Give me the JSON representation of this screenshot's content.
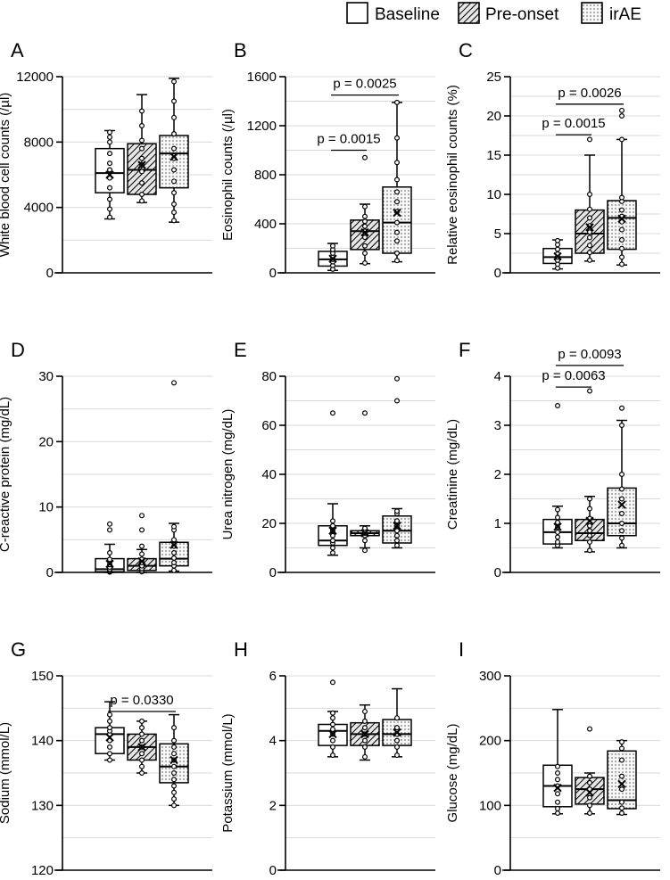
{
  "legend": {
    "position": "top-right",
    "items": [
      {
        "label": "Baseline",
        "pattern": "none"
      },
      {
        "label": "Pre-onset",
        "pattern": "hatch"
      },
      {
        "label": "irAE",
        "pattern": "dots"
      }
    ]
  },
  "colors": {
    "ink": "#000000",
    "grid": "#d9d9d9",
    "hatch_bg": "#e6e6e6",
    "dot_bg": "#f2f2f2"
  },
  "chart_data": [
    {
      "type": "box",
      "panel": "A",
      "ylabel": "White blood cell counts (/µl)",
      "ylim": [
        0,
        12000
      ],
      "ticks": [
        0,
        4000,
        8000,
        12000
      ],
      "gridlines": [
        2000,
        6000,
        10000
      ],
      "series": [
        {
          "group": "Baseline",
          "min": 3300,
          "q1": 4900,
          "median": 6100,
          "q3": 7600,
          "max": 8700,
          "mean": 6000,
          "points": [
            3400,
            3900,
            4500,
            5200,
            5800,
            6300,
            6700,
            7300,
            8000,
            8300,
            8600
          ]
        },
        {
          "group": "Pre-onset",
          "min": 4300,
          "q1": 4800,
          "median": 6300,
          "q3": 7900,
          "max": 10900,
          "mean": 6600,
          "points": [
            4400,
            4800,
            5500,
            6200,
            6600,
            7000,
            7600,
            8100,
            9000,
            9900
          ]
        },
        {
          "group": "irAE",
          "min": 3100,
          "q1": 5200,
          "median": 7300,
          "q3": 8400,
          "max": 11900,
          "mean": 7100,
          "points": [
            3200,
            3700,
            4200,
            4900,
            5600,
            6300,
            7000,
            7600,
            8500,
            9500,
            10500,
            11700
          ]
        }
      ],
      "pvalues": []
    },
    {
      "type": "box",
      "panel": "B",
      "ylabel": "Eosinophil counts (/µl)",
      "ylim": [
        0,
        1600
      ],
      "ticks": [
        0,
        400,
        800,
        1200,
        1600
      ],
      "gridlines": [
        200,
        600,
        1000,
        1400
      ],
      "series": [
        {
          "group": "Baseline",
          "min": 20,
          "q1": 55,
          "median": 110,
          "q3": 175,
          "max": 240,
          "mean": 115,
          "points": [
            30,
            60,
            90,
            110,
            130,
            160,
            190,
            220
          ]
        },
        {
          "group": "Pre-onset",
          "min": 75,
          "q1": 190,
          "median": 340,
          "q3": 430,
          "max": 560,
          "mean": 330,
          "points": [
            80,
            160,
            220,
            290,
            340,
            380,
            420,
            460,
            540,
            940
          ]
        },
        {
          "group": "irAE",
          "min": 90,
          "q1": 160,
          "median": 410,
          "q3": 700,
          "max": 1390,
          "mean": 490,
          "points": [
            100,
            160,
            260,
            330,
            410,
            500,
            580,
            660,
            760,
            900,
            1100,
            1390
          ]
        }
      ],
      "pvalues": [
        {
          "text": "p = 0.0015",
          "from": 0,
          "to": 1,
          "at": 1000
        },
        {
          "text": "p = 0.0025",
          "from": 0,
          "to": 2,
          "at": 1450
        }
      ]
    },
    {
      "type": "box",
      "panel": "C",
      "ylabel": "Relative eosinophil counts (%)",
      "ylim": [
        0,
        25
      ],
      "ticks": [
        0,
        5,
        10,
        15,
        20,
        25
      ],
      "gridlines": [
        2.5,
        7.5,
        12.5,
        17.5,
        22.5
      ],
      "series": [
        {
          "group": "Baseline",
          "min": 0.5,
          "q1": 1.2,
          "median": 2.0,
          "q3": 3.1,
          "max": 4.2,
          "mean": 2.1,
          "points": [
            0.6,
            1.1,
            1.6,
            2.0,
            2.4,
            3.0,
            3.6,
            4.1
          ]
        },
        {
          "group": "Pre-onset",
          "min": 1.5,
          "q1": 2.5,
          "median": 5.0,
          "q3": 8.0,
          "max": 15.0,
          "mean": 5.8,
          "points": [
            1.6,
            2.6,
            3.5,
            4.5,
            5.2,
            6.0,
            7.0,
            8.1,
            10.0,
            17.0
          ]
        },
        {
          "group": "irAE",
          "min": 1.0,
          "q1": 3.0,
          "median": 7.0,
          "q3": 9.2,
          "max": 17.0,
          "mean": 6.9,
          "points": [
            1.1,
            2.0,
            3.1,
            4.2,
            5.5,
            6.5,
            7.2,
            8.0,
            9.1,
            9.6,
            17.0,
            20.0,
            20.7
          ]
        }
      ],
      "pvalues": [
        {
          "text": "p = 0.0015",
          "from": 0,
          "to": 1,
          "at": 17.6
        },
        {
          "text": "p = 0.0026",
          "from": 0,
          "to": 2,
          "at": 21.5
        }
      ]
    },
    {
      "type": "box",
      "panel": "D",
      "ylabel": "C-reactive protein (mg/dL)",
      "ylim": [
        0,
        30
      ],
      "ticks": [
        0,
        10,
        20,
        30
      ],
      "gridlines": [
        5,
        15,
        25
      ],
      "series": [
        {
          "group": "Baseline",
          "min": 0.0,
          "q1": 0.1,
          "median": 0.5,
          "q3": 2.1,
          "max": 4.3,
          "mean": 1.3,
          "points": [
            0.05,
            0.1,
            0.2,
            0.3,
            0.5,
            0.8,
            1.2,
            2.0,
            3.0,
            6.5,
            7.4
          ]
        },
        {
          "group": "Pre-onset",
          "min": 0.0,
          "q1": 0.3,
          "median": 1.0,
          "q3": 2.1,
          "max": 3.5,
          "mean": 1.7,
          "points": [
            0.1,
            0.3,
            0.6,
            1.0,
            1.5,
            2.0,
            2.8,
            4.0,
            6.5,
            8.7
          ]
        },
        {
          "group": "irAE",
          "min": 0.2,
          "q1": 1.0,
          "median": 2.1,
          "q3": 4.6,
          "max": 7.5,
          "mean": 4.2,
          "points": [
            0.3,
            1.0,
            1.5,
            2.2,
            3.0,
            4.0,
            5.0,
            6.5,
            7.0,
            29.0
          ]
        }
      ],
      "pvalues": []
    },
    {
      "type": "box",
      "panel": "E",
      "ylabel": "Urea nitrogen (mg/dL)",
      "ylim": [
        0,
        80
      ],
      "ticks": [
        0,
        20,
        40,
        60,
        80
      ],
      "gridlines": [
        10,
        30,
        50,
        70
      ],
      "series": [
        {
          "group": "Baseline",
          "min": 7,
          "q1": 11,
          "median": 13,
          "q3": 19,
          "max": 28,
          "mean": 17,
          "points": [
            8,
            10,
            12,
            13,
            15,
            17,
            19,
            21,
            65
          ]
        },
        {
          "group": "Pre-onset",
          "min": 10,
          "q1": 15,
          "median": 16,
          "q3": 17,
          "max": 19,
          "mean": 16,
          "points": [
            9,
            13,
            15,
            16,
            17,
            18,
            65
          ]
        },
        {
          "group": "irAE",
          "min": 10,
          "q1": 12,
          "median": 17,
          "q3": 23,
          "max": 26,
          "mean": 19,
          "points": [
            11,
            13,
            15,
            17,
            19,
            21,
            24,
            25,
            70,
            79
          ]
        }
      ],
      "pvalues": []
    },
    {
      "type": "box",
      "panel": "F",
      "ylabel": "Creatinine (mg/dL)",
      "ylim": [
        0,
        4
      ],
      "ticks": [
        0,
        1,
        2,
        3,
        4
      ],
      "gridlines": [
        0.5,
        1.5,
        2.5,
        3.5
      ],
      "series": [
        {
          "group": "Baseline",
          "min": 0.5,
          "q1": 0.58,
          "median": 0.82,
          "q3": 1.08,
          "max": 1.35,
          "mean": 0.93,
          "points": [
            0.55,
            0.62,
            0.72,
            0.82,
            0.92,
            1.02,
            1.12,
            1.28,
            3.4
          ]
        },
        {
          "group": "Pre-onset",
          "min": 0.42,
          "q1": 0.65,
          "median": 0.8,
          "q3": 1.08,
          "max": 1.55,
          "mean": 1.05,
          "points": [
            0.45,
            0.62,
            0.75,
            0.85,
            0.95,
            1.1,
            1.3,
            1.5,
            3.7
          ]
        },
        {
          "group": "irAE",
          "min": 0.5,
          "q1": 0.75,
          "median": 1.0,
          "q3": 1.72,
          "max": 3.1,
          "mean": 1.38,
          "points": [
            0.55,
            0.7,
            0.85,
            1.0,
            1.2,
            1.5,
            1.7,
            2.0,
            3.0,
            3.35
          ]
        }
      ],
      "pvalues": [
        {
          "text": "p = 0.0063",
          "from": 0,
          "to": 1,
          "at": 3.78
        },
        {
          "text": "p = 0.0093",
          "from": 0,
          "to": 2,
          "at": 4.22
        }
      ]
    },
    {
      "type": "box",
      "panel": "G",
      "ylabel": "Sodium (mmol/L)",
      "ylim": [
        120,
        150
      ],
      "ticks": [
        120,
        130,
        140,
        150
      ],
      "gridlines": [
        125,
        135,
        145
      ],
      "series": [
        {
          "group": "Baseline",
          "min": 137,
          "q1": 138,
          "median": 141,
          "q3": 142,
          "max": 146,
          "mean": 140.5,
          "points": [
            137,
            138,
            139,
            140,
            141,
            141.5,
            142,
            143,
            144
          ]
        },
        {
          "group": "Pre-onset",
          "min": 135,
          "q1": 137,
          "median": 139,
          "q3": 141,
          "max": 143,
          "mean": 139,
          "points": [
            135,
            136,
            137,
            138,
            139,
            140,
            141,
            142,
            143
          ]
        },
        {
          "group": "irAE",
          "min": 130,
          "q1": 133.5,
          "median": 136,
          "q3": 139.5,
          "max": 144,
          "mean": 137,
          "points": [
            130,
            131,
            132,
            133,
            134,
            135,
            136,
            137,
            138,
            139,
            140,
            142
          ]
        }
      ],
      "pvalues": [
        {
          "text": "p = 0.0330",
          "from": 0,
          "to": 2,
          "at": 144.5
        }
      ]
    },
    {
      "type": "box",
      "panel": "H",
      "ylabel": "Potassium (mmol/L)",
      "ylim": [
        0,
        6
      ],
      "ticks": [
        0,
        2,
        4,
        6
      ],
      "gridlines": [
        1,
        3,
        5
      ],
      "series": [
        {
          "group": "Baseline",
          "min": 3.5,
          "q1": 3.85,
          "median": 4.3,
          "q3": 4.5,
          "max": 4.9,
          "mean": 4.2,
          "points": [
            3.55,
            3.8,
            4.0,
            4.2,
            4.35,
            4.5,
            4.7,
            4.85,
            5.8
          ]
        },
        {
          "group": "Pre-onset",
          "min": 3.4,
          "q1": 3.85,
          "median": 4.2,
          "q3": 4.55,
          "max": 5.1,
          "mean": 4.2,
          "points": [
            3.5,
            3.8,
            4.0,
            4.2,
            4.4,
            4.6,
            4.9
          ]
        },
        {
          "group": "irAE",
          "min": 3.5,
          "q1": 3.85,
          "median": 4.2,
          "q3": 4.65,
          "max": 5.6,
          "mean": 4.25,
          "points": [
            3.55,
            3.8,
            4.0,
            4.2,
            4.4,
            4.7
          ]
        }
      ],
      "pvalues": []
    },
    {
      "type": "box",
      "panel": "I",
      "ylabel": "Glucose (mg/dL)",
      "ylim": [
        0,
        300
      ],
      "ticks": [
        0,
        100,
        200,
        300
      ],
      "gridlines": [
        50,
        150,
        250
      ],
      "series": [
        {
          "group": "Baseline",
          "min": 87,
          "q1": 98,
          "median": 130,
          "q3": 162,
          "max": 248,
          "mean": 127,
          "points": [
            88,
            95,
            105,
            118,
            130,
            140,
            150,
            160
          ]
        },
        {
          "group": "Pre-onset",
          "min": 87,
          "q1": 102,
          "median": 125,
          "q3": 143,
          "max": 150,
          "mean": 120,
          "points": [
            88,
            100,
            112,
            125,
            135,
            145,
            218
          ]
        },
        {
          "group": "irAE",
          "min": 86,
          "q1": 95,
          "median": 108,
          "q3": 184,
          "max": 200,
          "mean": 133,
          "points": [
            88,
            96,
            105,
            125,
            145,
            170,
            188,
            198
          ]
        }
      ],
      "pvalues": []
    }
  ]
}
